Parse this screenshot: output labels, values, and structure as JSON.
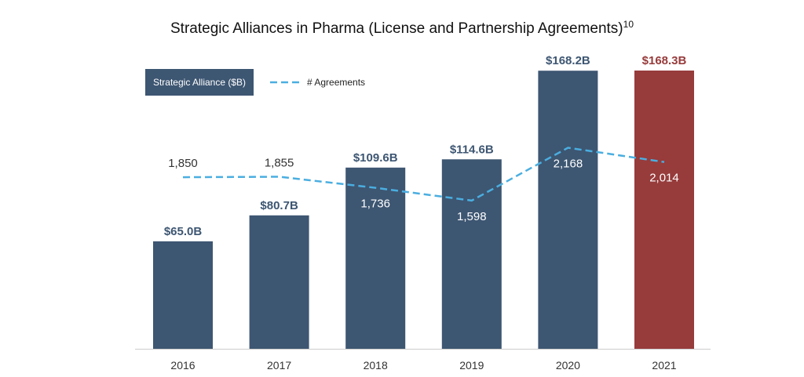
{
  "chart_data": {
    "type": "bar",
    "title": "Strategic Alliances in Pharma (License and Partnership Agreements)",
    "title_superscript": "10",
    "categories": [
      "2016",
      "2017",
      "2018",
      "2019",
      "2020",
      "2021"
    ],
    "series": [
      {
        "name": "Strategic Alliance ($B)",
        "type": "bar",
        "values": [
          65.0,
          80.7,
          109.6,
          114.6,
          168.2,
          168.3
        ],
        "labels": [
          "$65.0B",
          "$80.7B",
          "$109.6B",
          "$114.6B",
          "$168.2B",
          "$168.3B"
        ]
      },
      {
        "name": "# Agreements",
        "type": "line",
        "style": "dashed",
        "values": [
          1850,
          1855,
          1736,
          1598,
          2168,
          2014
        ],
        "labels": [
          "1,850",
          "1,855",
          "1,736",
          "1,598",
          "2,168",
          "2,014"
        ]
      }
    ],
    "ylim": [
      0,
      168.3
    ],
    "y2lim": [
      0,
      3000
    ],
    "grid": false,
    "legend_position": "top-left",
    "colors": {
      "bar": "#3d5672",
      "bar_highlight": "#973b3b",
      "line": "#4aaee0",
      "axis": "#cccccc"
    }
  }
}
